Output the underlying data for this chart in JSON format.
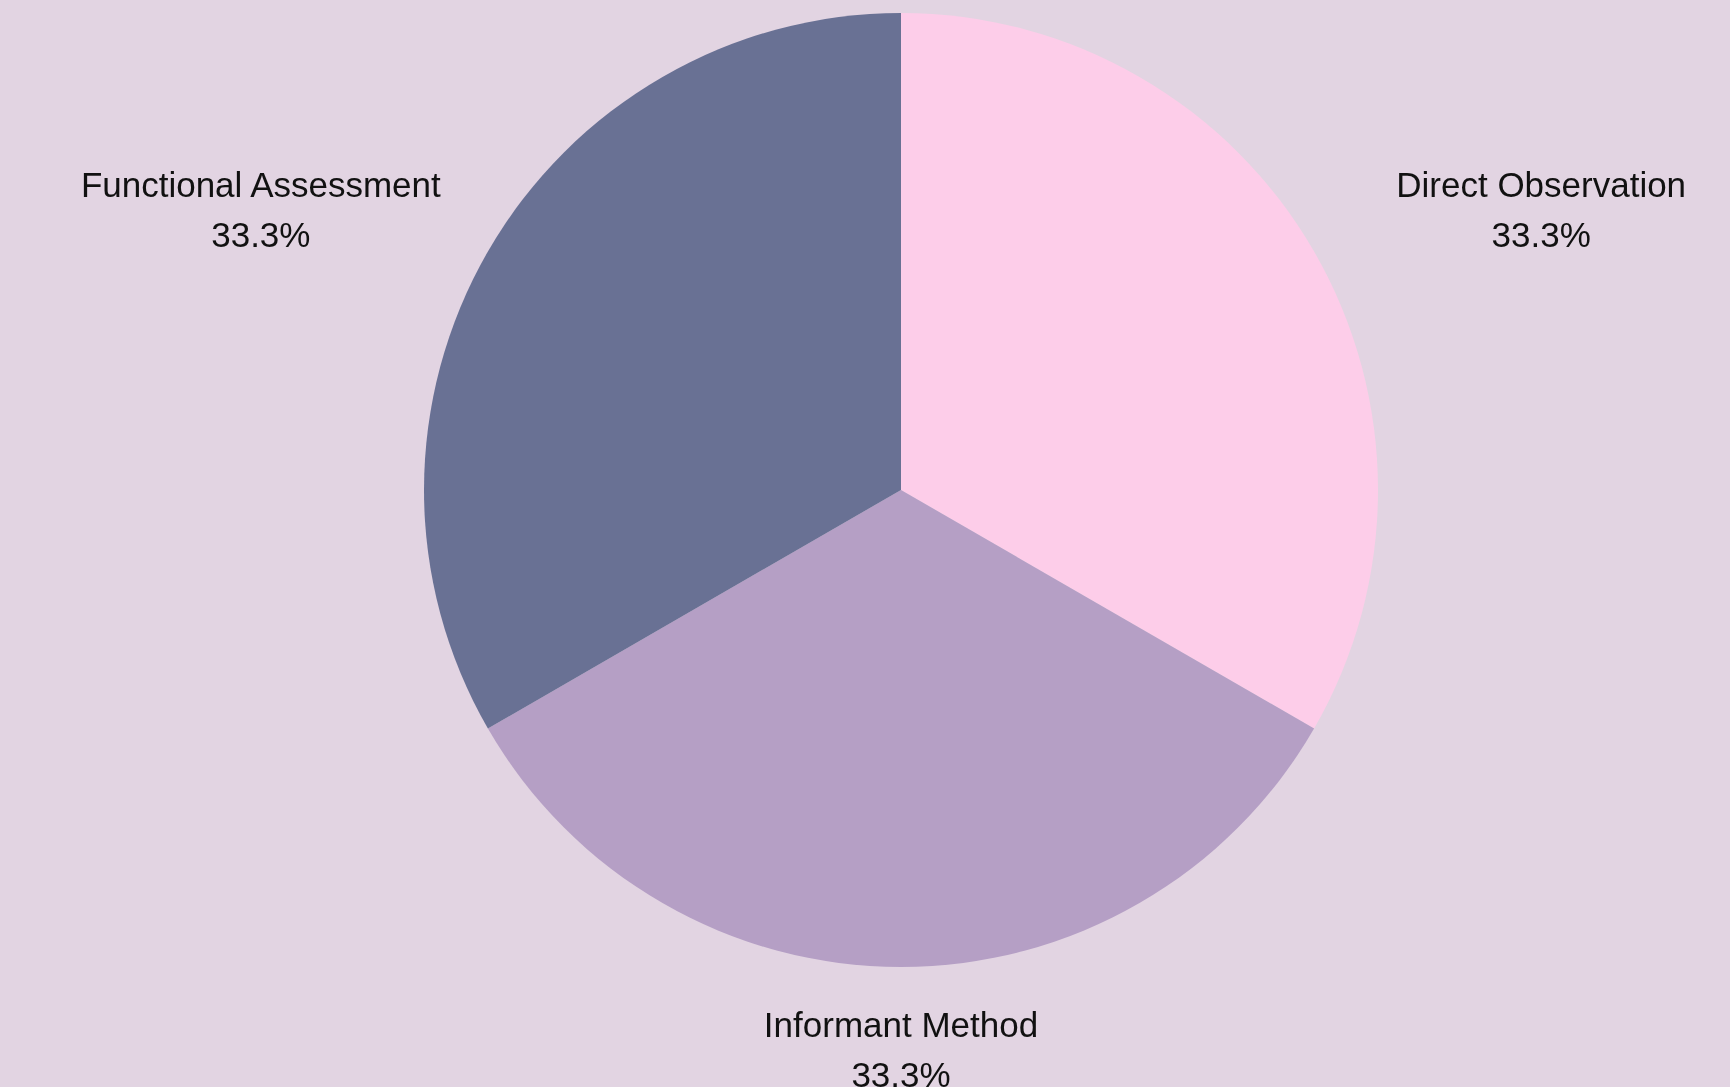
{
  "chart_data": {
    "type": "pie",
    "categories": [
      "Direct Observation",
      "Informant Method",
      "Functional Assessment"
    ],
    "values": [
      33.3,
      33.3,
      33.3
    ],
    "value_labels": [
      "33.3%",
      "33.3%",
      "33.3%"
    ],
    "colors": [
      "#fdcde9",
      "#b59fc5",
      "#697194"
    ]
  }
}
